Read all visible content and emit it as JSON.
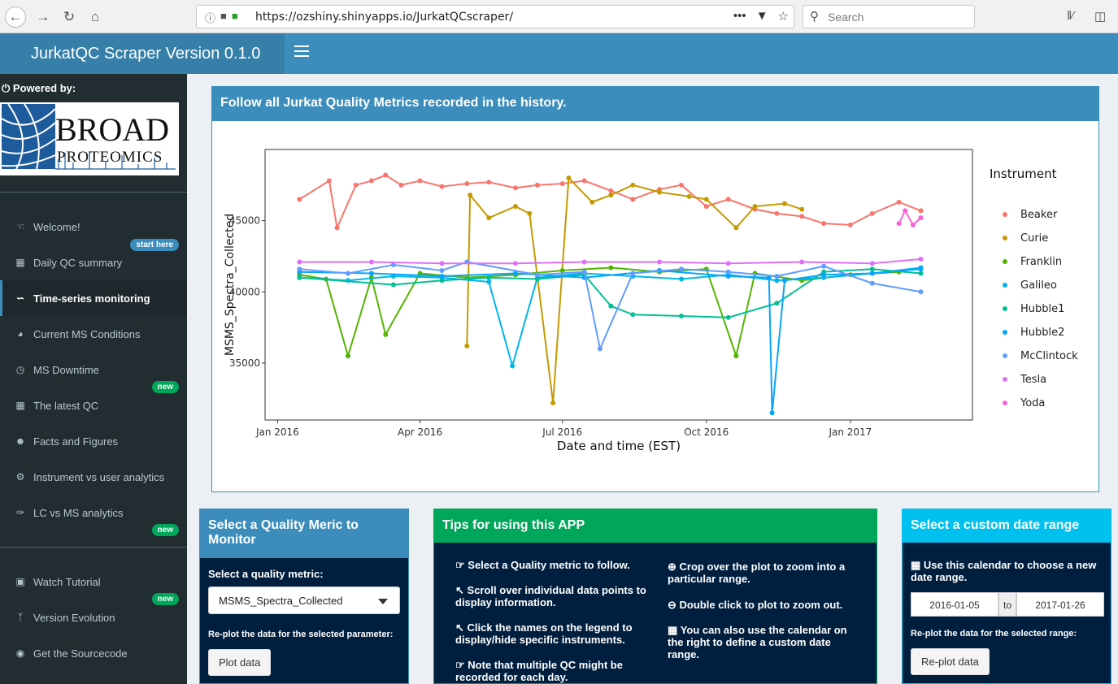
{
  "browser": {
    "url": "https://ozshiny.shinyapps.io/JurkatQCscraper/",
    "search_placeholder": "Search",
    "more": "•••"
  },
  "header": {
    "title": "JurkatQC Scraper Version 0.1.0"
  },
  "sidebar": {
    "powered_by": "Powered by:",
    "logo_line1": "BROAD",
    "logo_line2": "PROTEOMICS",
    "items": [
      {
        "label": "Welcome!",
        "icon": "thumbs-up-icon",
        "badge": "start here"
      },
      {
        "label": "Daily QC summary",
        "icon": "bar-chart-icon"
      },
      {
        "label": "Time-series monitoring",
        "icon": "line-chart-icon",
        "active": true
      },
      {
        "label": "Current MS Conditions",
        "icon": "dashboard-icon"
      },
      {
        "label": "MS Downtime",
        "icon": "clock-icon",
        "badge": "new"
      },
      {
        "label": "The latest QC",
        "icon": "table-icon"
      },
      {
        "label": "Facts and Figures",
        "icon": "users-icon"
      },
      {
        "label": "Instrument vs user analytics",
        "icon": "cogs-icon"
      },
      {
        "label": "LC vs MS analytics",
        "icon": "eyedropper-icon",
        "badge": "new"
      },
      {
        "label": "Watch Tutorial",
        "icon": "film-icon",
        "badge": "new"
      },
      {
        "label": "Version Evolution",
        "icon": "code-fork-icon"
      },
      {
        "label": "Get the Sourcecode",
        "icon": "github-icon"
      }
    ]
  },
  "main": {
    "chart_title": "Follow all Jurkat Quality Metrics recorded in the history."
  },
  "chart_data": {
    "type": "line",
    "title": "",
    "xlabel": "Date and time (EST)",
    "ylabel": "MSMS_Spectra_Collected",
    "x_ticks": [
      "Jan 2016",
      "Apr 2016",
      "Jul 2016",
      "Oct 2016",
      "Jan 2017"
    ],
    "y_ticks": [
      "35000",
      "40000",
      "45000"
    ],
    "ylim": [
      31000,
      50000
    ],
    "xlim": [
      "2015-12-24",
      "2017-03-20"
    ],
    "legend_title": "Instrument",
    "legend_position": "right",
    "grid": false,
    "series": [
      {
        "name": "Beaker",
        "color": "#f8766d",
        "dates": [
          "2016-01-15",
          "2016-02-03",
          "2016-02-08",
          "2016-02-20",
          "2016-03-01",
          "2016-03-10",
          "2016-03-20",
          "2016-04-01",
          "2016-04-15",
          "2016-05-01",
          "2016-05-15",
          "2016-06-01",
          "2016-06-15",
          "2016-07-01",
          "2016-07-15",
          "2016-08-01",
          "2016-08-15",
          "2016-09-01",
          "2016-09-15",
          "2016-10-01",
          "2016-10-15",
          "2016-11-01",
          "2016-11-15",
          "2016-12-01",
          "2016-12-15",
          "2017-01-01",
          "2017-01-15",
          "2017-02-01",
          "2017-02-15"
        ],
        "values": [
          46500,
          47800,
          44500,
          47500,
          47800,
          48200,
          47500,
          47800,
          47400,
          47600,
          47700,
          47300,
          47500,
          47600,
          47800,
          47100,
          46500,
          47200,
          47500,
          46000,
          46500,
          45800,
          45500,
          45300,
          44800,
          44700,
          45500,
          46300,
          45700
        ]
      },
      {
        "name": "Curie",
        "color": "#c49a00",
        "dates": [
          "2016-05-01",
          "2016-05-03",
          "2016-05-15",
          "2016-06-01",
          "2016-06-10",
          "2016-06-25",
          "2016-07-05",
          "2016-07-20",
          "2016-08-01",
          "2016-08-15",
          "2016-09-01",
          "2016-09-20",
          "2016-10-01",
          "2016-10-20",
          "2016-11-01",
          "2016-11-20",
          "2016-12-01"
        ],
        "values": [
          36200,
          46800,
          45200,
          46000,
          45500,
          32200,
          48000,
          46300,
          46800,
          47500,
          47000,
          46700,
          46500,
          44500,
          46000,
          46200,
          45800
        ]
      },
      {
        "name": "Franklin",
        "color": "#53b400",
        "dates": [
          "2016-01-15",
          "2016-02-01",
          "2016-02-15",
          "2016-03-01",
          "2016-03-10",
          "2016-04-01",
          "2016-05-01",
          "2016-06-01",
          "2016-07-01",
          "2016-08-01",
          "2016-09-01",
          "2016-10-01",
          "2016-10-20",
          "2016-11-01",
          "2016-12-01",
          "2017-01-01",
          "2017-02-01"
        ],
        "values": [
          41200,
          40900,
          35500,
          41000,
          37000,
          41300,
          41000,
          41200,
          41500,
          41700,
          41400,
          41600,
          35500,
          41300,
          40800,
          41200,
          41400
        ]
      },
      {
        "name": "Galileo",
        "color": "#00b6eb",
        "dates": [
          "2016-01-15",
          "2016-02-15",
          "2016-03-15",
          "2016-04-15",
          "2016-05-15",
          "2016-05-30",
          "2016-06-15",
          "2016-07-15",
          "2016-08-15",
          "2016-09-15",
          "2016-10-15",
          "2016-11-15",
          "2016-12-15",
          "2017-01-15",
          "2017-02-15"
        ],
        "values": [
          41000,
          40800,
          41100,
          41000,
          40700,
          34800,
          41000,
          41300,
          41100,
          40900,
          41200,
          40800,
          41000,
          41300,
          41700
        ]
      },
      {
        "name": "Hubble1",
        "color": "#00c094",
        "dates": [
          "2016-01-15",
          "2016-03-15",
          "2016-04-15",
          "2016-05-15",
          "2016-06-15",
          "2016-07-15",
          "2016-08-01",
          "2016-08-15",
          "2016-09-15",
          "2016-10-15",
          "2016-11-15",
          "2016-12-15",
          "2017-01-15",
          "2017-02-15"
        ],
        "values": [
          41000,
          40500,
          40800,
          41000,
          40900,
          41200,
          39000,
          38400,
          38300,
          38200,
          39200,
          41400,
          41600,
          41300
        ]
      },
      {
        "name": "Hubble2",
        "color": "#06a4ff",
        "dates": [
          "2016-01-15",
          "2016-03-01",
          "2016-04-15",
          "2016-06-01",
          "2016-07-15",
          "2016-09-01",
          "2016-10-15",
          "2016-11-10",
          "2016-11-12",
          "2016-11-20",
          "2016-12-15",
          "2017-01-15",
          "2017-02-15"
        ],
        "values": [
          41400,
          41300,
          41100,
          41300,
          41000,
          41500,
          41100,
          41000,
          31500,
          40800,
          41200,
          41300,
          41600
        ]
      },
      {
        "name": "McClintock",
        "color": "#619cff",
        "dates": [
          "2016-01-15",
          "2016-02-15",
          "2016-03-15",
          "2016-04-15",
          "2016-05-01",
          "2016-06-15",
          "2016-07-15",
          "2016-07-25",
          "2016-08-15",
          "2016-09-15",
          "2016-10-15",
          "2016-11-15",
          "2016-12-15",
          "2017-01-15",
          "2017-02-15"
        ],
        "values": [
          41600,
          41300,
          41900,
          41500,
          42100,
          41200,
          41400,
          36000,
          41300,
          41600,
          41400,
          41100,
          41800,
          40600,
          40000
        ]
      },
      {
        "name": "Tesla",
        "color": "#df70f8",
        "dates": [
          "2016-01-15",
          "2016-03-01",
          "2016-04-15",
          "2016-06-01",
          "2016-07-15",
          "2016-09-01",
          "2016-10-15",
          "2016-12-01",
          "2017-01-15",
          "2017-02-15"
        ],
        "values": [
          42100,
          42100,
          42000,
          42000,
          42100,
          42100,
          42000,
          42100,
          42000,
          42300
        ]
      },
      {
        "name": "Yoda",
        "color": "#fb61d7",
        "dates": [
          "2017-02-01",
          "2017-02-05",
          "2017-02-10",
          "2017-02-15"
        ],
        "values": [
          44800,
          45700,
          44700,
          45200
        ]
      }
    ]
  },
  "quality_box": {
    "title": "Select a Quality Meric to Monitor",
    "select_label": "Select a quality metric:",
    "selected_metric": "MSMS_Spectra_Collected",
    "replot_hint": "Re-plot the data for the selected parameter:",
    "button": "Plot data"
  },
  "tips_box": {
    "title": "Tips for using this APP",
    "tips": [
      {
        "icon": "hand-point-icon",
        "glyph": "☞",
        "text": "Select a Quality metric to follow."
      },
      {
        "icon": "pointer-icon",
        "glyph": "↖",
        "text": "Scroll over individual data points to display information."
      },
      {
        "icon": "pointer-icon",
        "glyph": "↖",
        "text": "Click the names on the legend to display/hide specific instruments."
      },
      {
        "icon": "hand-point-icon",
        "glyph": "☞",
        "text": "Note that multiple QC might be recorded for each day."
      },
      {
        "icon": "zoom-in-icon",
        "glyph": "⊕",
        "text": "Crop over the plot to zoom into a particular range."
      },
      {
        "icon": "zoom-out-icon",
        "glyph": "⊖",
        "text": "Double click to plot to zoom out."
      },
      {
        "icon": "calendar-icon",
        "glyph": "▦",
        "text": "You can also use the calendar on the right to define a custom date range."
      }
    ]
  },
  "date_box": {
    "title": "Select a custom date range",
    "hint": "Use this calendar to choose a new date range.",
    "start": "2016-01-05",
    "sep": "to",
    "end": "2017-01-26",
    "replot_hint": "Re-plot the data for the selected range:",
    "button": "Re-plot data"
  }
}
